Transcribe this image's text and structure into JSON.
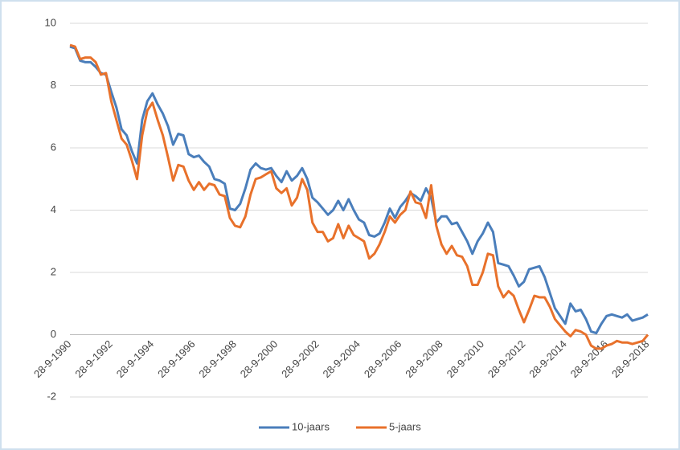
{
  "chart_data": {
    "type": "line",
    "categories": [
      "28-9-1990",
      null,
      null,
      null,
      null,
      null,
      null,
      null,
      "28-9-1992",
      null,
      null,
      null,
      null,
      null,
      null,
      null,
      "28-9-1994",
      null,
      null,
      null,
      null,
      null,
      null,
      null,
      "28-9-1996",
      null,
      null,
      null,
      null,
      null,
      null,
      null,
      "28-9-1998",
      null,
      null,
      null,
      null,
      null,
      null,
      null,
      "28-9-2000",
      null,
      null,
      null,
      null,
      null,
      null,
      null,
      "28-9-2002",
      null,
      null,
      null,
      null,
      null,
      null,
      null,
      "28-9-2004",
      null,
      null,
      null,
      null,
      null,
      null,
      null,
      "28-9-2006",
      null,
      null,
      null,
      null,
      null,
      null,
      null,
      "28-9-2008",
      null,
      null,
      null,
      null,
      null,
      null,
      null,
      "28-9-2010",
      null,
      null,
      null,
      null,
      null,
      null,
      null,
      "28-9-2012",
      null,
      null,
      null,
      null,
      null,
      null,
      null,
      "28-9-2014",
      null,
      null,
      null,
      null,
      null,
      null,
      null,
      "28-9-2016",
      null,
      null,
      null,
      null,
      null,
      null,
      null,
      "28-9-2018"
    ],
    "series": [
      {
        "name": "10-jaars",
        "color": "#4a7ebb",
        "values": [
          9.25,
          9.2,
          8.8,
          8.75,
          8.75,
          8.6,
          8.4,
          8.35,
          7.8,
          7.3,
          6.6,
          6.4,
          5.9,
          5.5,
          6.9,
          7.5,
          7.75,
          7.4,
          7.1,
          6.7,
          6.1,
          6.45,
          6.4,
          5.8,
          5.7,
          5.75,
          5.55,
          5.4,
          5.0,
          4.95,
          4.85,
          4.05,
          4.0,
          4.2,
          4.7,
          5.3,
          5.5,
          5.35,
          5.3,
          5.35,
          5.1,
          4.9,
          5.25,
          4.95,
          5.1,
          5.35,
          5.0,
          4.4,
          4.25,
          4.05,
          3.85,
          4.0,
          4.3,
          4.0,
          4.35,
          4.0,
          3.7,
          3.6,
          3.2,
          3.15,
          3.25,
          3.6,
          4.05,
          3.75,
          4.1,
          4.3,
          4.55,
          4.45,
          4.3,
          4.7,
          4.4,
          3.6,
          3.8,
          3.8,
          3.55,
          3.6,
          3.3,
          3.0,
          2.6,
          3.0,
          3.25,
          3.6,
          3.3,
          2.3,
          2.25,
          2.2,
          1.9,
          1.55,
          1.7,
          2.1,
          2.15,
          2.2,
          1.85,
          1.35,
          0.85,
          0.6,
          0.35,
          1.0,
          0.75,
          0.8,
          0.5,
          0.1,
          0.05,
          0.35,
          0.6,
          0.65,
          0.6,
          0.55,
          0.65,
          0.45,
          0.5,
          0.55,
          0.65
        ]
      },
      {
        "name": "5-jaars",
        "color": "#e8712b",
        "values": [
          9.3,
          9.25,
          8.85,
          8.9,
          8.9,
          8.75,
          8.35,
          8.4,
          7.5,
          6.9,
          6.3,
          6.1,
          5.6,
          5.0,
          6.4,
          7.2,
          7.45,
          6.9,
          6.4,
          5.7,
          4.95,
          5.45,
          5.4,
          4.95,
          4.65,
          4.9,
          4.65,
          4.85,
          4.8,
          4.5,
          4.45,
          3.75,
          3.5,
          3.45,
          3.8,
          4.5,
          5.0,
          5.05,
          5.15,
          5.25,
          4.7,
          4.55,
          4.7,
          4.15,
          4.4,
          5.0,
          4.65,
          3.6,
          3.3,
          3.3,
          3.0,
          3.1,
          3.55,
          3.1,
          3.5,
          3.2,
          3.1,
          3.0,
          2.45,
          2.6,
          2.9,
          3.3,
          3.8,
          3.6,
          3.85,
          4.0,
          4.6,
          4.25,
          4.2,
          3.75,
          4.8,
          3.5,
          2.9,
          2.6,
          2.85,
          2.55,
          2.5,
          2.2,
          1.6,
          1.6,
          2.0,
          2.6,
          2.55,
          1.55,
          1.2,
          1.4,
          1.25,
          0.8,
          0.4,
          0.8,
          1.25,
          1.2,
          1.2,
          0.9,
          0.5,
          0.3,
          0.1,
          -0.05,
          0.15,
          0.1,
          0.0,
          -0.35,
          -0.45,
          -0.45,
          -0.35,
          -0.3,
          -0.2,
          -0.25,
          -0.25,
          -0.3,
          -0.25,
          -0.2,
          0.0
        ]
      }
    ],
    "ylim": [
      -2,
      10
    ],
    "yticks": [
      -2,
      0,
      2,
      4,
      6,
      8,
      10
    ],
    "grid": true
  }
}
